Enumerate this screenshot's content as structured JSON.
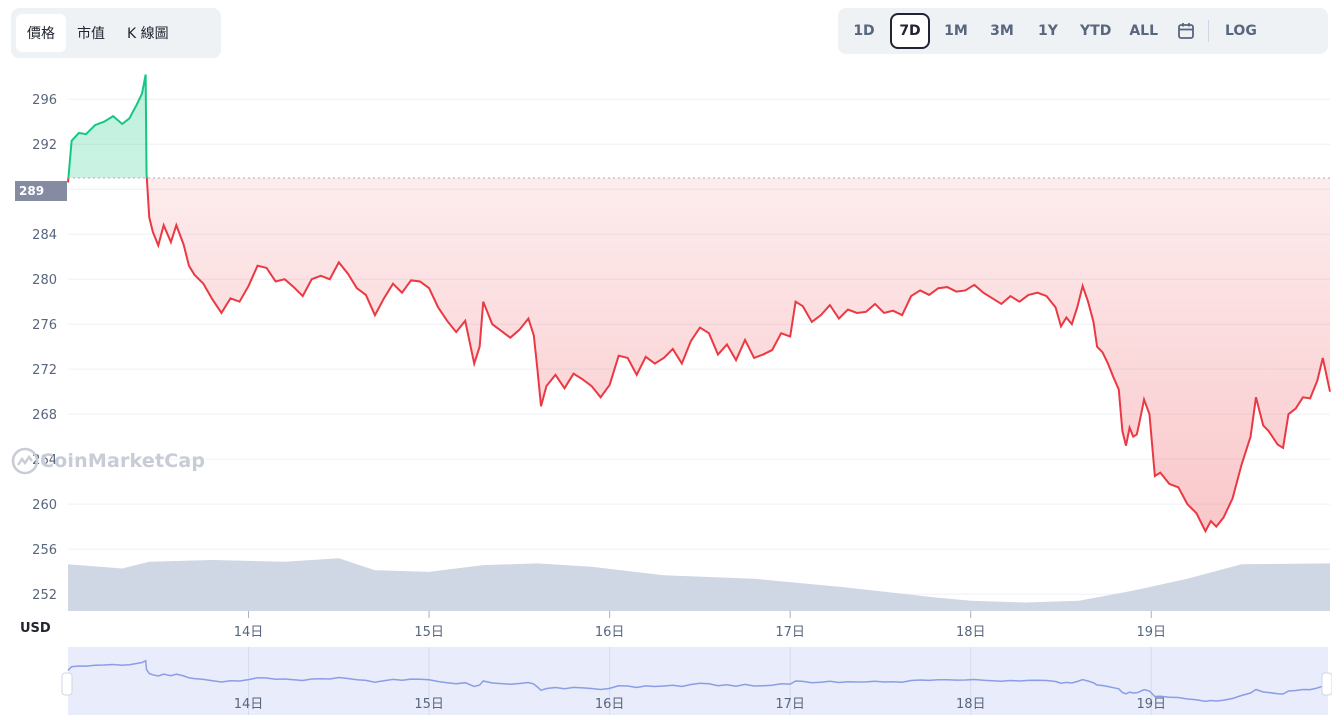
{
  "tabs_left": [
    {
      "label": "價格",
      "active": true
    },
    {
      "label": "市值",
      "active": false
    },
    {
      "label": "K 線圖",
      "active": false
    }
  ],
  "ranges": [
    "1D",
    "7D",
    "1M",
    "3M",
    "1Y",
    "YTD",
    "ALL"
  ],
  "active_range": "7D",
  "log_label": "LOG",
  "calendar_icon": "calendar-icon",
  "watermark": "CoinMarketCap",
  "current_price_label": "289",
  "currency_label": "USD",
  "colors": {
    "up": "#16c784",
    "down": "#ea3943",
    "volume": "#cfd6e4",
    "navigator_line": "#8a9ee6",
    "navigator_fill": "#e8ecfb"
  },
  "chart_data": {
    "type": "line",
    "title": "",
    "xlabel": "",
    "ylabel": "USD",
    "ylim": [
      250.5,
      298.6
    ],
    "y_ticks": [
      "252",
      "256",
      "260",
      "264",
      "268",
      "272",
      "276",
      "280",
      "284",
      "288",
      "292",
      "296"
    ],
    "x_tick_labels": [
      "14日",
      "15日",
      "16日",
      "17日",
      "18日",
      "19日"
    ],
    "x_tick_days": [
      14,
      15,
      16,
      17,
      18,
      19
    ],
    "reference_price": 289,
    "series": [
      {
        "name": "",
        "points": [
          [
            13.0,
            288.6
          ],
          [
            13.02,
            292.3
          ],
          [
            13.06,
            293.0
          ],
          [
            13.1,
            292.9
          ],
          [
            13.15,
            293.7
          ],
          [
            13.2,
            294.0
          ],
          [
            13.25,
            294.5
          ],
          [
            13.3,
            293.8
          ],
          [
            13.34,
            294.3
          ],
          [
            13.38,
            295.5
          ],
          [
            13.41,
            296.5
          ],
          [
            13.43,
            298.2
          ],
          [
            13.435,
            289.4
          ],
          [
            13.45,
            285.5
          ],
          [
            13.47,
            284.2
          ],
          [
            13.5,
            283.0
          ],
          [
            13.53,
            284.8
          ],
          [
            13.57,
            283.3
          ],
          [
            13.6,
            284.8
          ],
          [
            13.64,
            283.1
          ],
          [
            13.67,
            281.2
          ],
          [
            13.7,
            280.4
          ],
          [
            13.75,
            279.6
          ],
          [
            13.8,
            278.2
          ],
          [
            13.85,
            277.0
          ],
          [
            13.9,
            278.3
          ],
          [
            13.95,
            278.0
          ],
          [
            14.0,
            279.4
          ],
          [
            14.05,
            281.2
          ],
          [
            14.1,
            281.0
          ],
          [
            14.15,
            279.8
          ],
          [
            14.2,
            280.0
          ],
          [
            14.25,
            279.3
          ],
          [
            14.3,
            278.5
          ],
          [
            14.35,
            280.0
          ],
          [
            14.4,
            280.3
          ],
          [
            14.45,
            280.0
          ],
          [
            14.5,
            281.5
          ],
          [
            14.55,
            280.5
          ],
          [
            14.6,
            279.2
          ],
          [
            14.65,
            278.6
          ],
          [
            14.7,
            276.8
          ],
          [
            14.75,
            278.3
          ],
          [
            14.8,
            279.6
          ],
          [
            14.85,
            278.8
          ],
          [
            14.9,
            279.9
          ],
          [
            14.95,
            279.8
          ],
          [
            15.0,
            279.2
          ],
          [
            15.05,
            277.5
          ],
          [
            15.1,
            276.3
          ],
          [
            15.15,
            275.3
          ],
          [
            15.2,
            276.3
          ],
          [
            15.25,
            272.5
          ],
          [
            15.28,
            274.0
          ],
          [
            15.3,
            278.0
          ],
          [
            15.35,
            276.0
          ],
          [
            15.4,
            275.4
          ],
          [
            15.45,
            274.8
          ],
          [
            15.5,
            275.5
          ],
          [
            15.55,
            276.5
          ],
          [
            15.58,
            275.0
          ],
          [
            15.6,
            272.0
          ],
          [
            15.62,
            268.7
          ],
          [
            15.65,
            270.5
          ],
          [
            15.7,
            271.5
          ],
          [
            15.75,
            270.3
          ],
          [
            15.8,
            271.6
          ],
          [
            15.85,
            271.1
          ],
          [
            15.9,
            270.5
          ],
          [
            15.95,
            269.5
          ],
          [
            16.0,
            270.6
          ],
          [
            16.05,
            273.2
          ],
          [
            16.1,
            273.0
          ],
          [
            16.15,
            271.5
          ],
          [
            16.2,
            273.1
          ],
          [
            16.25,
            272.5
          ],
          [
            16.3,
            273.0
          ],
          [
            16.35,
            273.8
          ],
          [
            16.4,
            272.5
          ],
          [
            16.45,
            274.5
          ],
          [
            16.5,
            275.7
          ],
          [
            16.55,
            275.2
          ],
          [
            16.6,
            273.3
          ],
          [
            16.65,
            274.2
          ],
          [
            16.7,
            272.8
          ],
          [
            16.75,
            274.6
          ],
          [
            16.8,
            273.0
          ],
          [
            16.85,
            273.3
          ],
          [
            16.9,
            273.7
          ],
          [
            16.95,
            275.2
          ],
          [
            17.0,
            274.9
          ],
          [
            17.03,
            278.0
          ],
          [
            17.07,
            277.6
          ],
          [
            17.12,
            276.2
          ],
          [
            17.17,
            276.8
          ],
          [
            17.22,
            277.7
          ],
          [
            17.27,
            276.5
          ],
          [
            17.32,
            277.3
          ],
          [
            17.37,
            277.0
          ],
          [
            17.42,
            277.1
          ],
          [
            17.47,
            277.8
          ],
          [
            17.52,
            277.0
          ],
          [
            17.57,
            277.2
          ],
          [
            17.62,
            276.8
          ],
          [
            17.67,
            278.5
          ],
          [
            17.72,
            279.0
          ],
          [
            17.77,
            278.6
          ],
          [
            17.82,
            279.2
          ],
          [
            17.87,
            279.3
          ],
          [
            17.92,
            278.9
          ],
          [
            17.97,
            279.0
          ],
          [
            18.02,
            279.5
          ],
          [
            18.07,
            278.8
          ],
          [
            18.12,
            278.3
          ],
          [
            18.17,
            277.8
          ],
          [
            18.22,
            278.5
          ],
          [
            18.27,
            278.0
          ],
          [
            18.32,
            278.6
          ],
          [
            18.37,
            278.8
          ],
          [
            18.42,
            278.5
          ],
          [
            18.47,
            277.5
          ],
          [
            18.5,
            275.8
          ],
          [
            18.53,
            276.6
          ],
          [
            18.56,
            276.0
          ],
          [
            18.59,
            277.5
          ],
          [
            18.62,
            279.4
          ],
          [
            18.65,
            278.0
          ],
          [
            18.68,
            276.2
          ],
          [
            18.7,
            274.0
          ],
          [
            18.73,
            273.5
          ],
          [
            18.76,
            272.5
          ],
          [
            18.79,
            271.3
          ],
          [
            18.82,
            270.2
          ],
          [
            18.84,
            266.5
          ],
          [
            18.86,
            265.2
          ],
          [
            18.88,
            266.8
          ],
          [
            18.9,
            266.0
          ],
          [
            18.92,
            266.2
          ],
          [
            18.94,
            267.7
          ],
          [
            18.96,
            269.3
          ],
          [
            18.99,
            268.0
          ],
          [
            19.02,
            262.5
          ],
          [
            19.05,
            262.8
          ],
          [
            19.1,
            261.8
          ],
          [
            19.15,
            261.5
          ],
          [
            19.2,
            260.0
          ],
          [
            19.25,
            259.2
          ],
          [
            19.3,
            257.6
          ],
          [
            19.33,
            258.5
          ],
          [
            19.36,
            258.0
          ],
          [
            19.4,
            258.8
          ],
          [
            19.45,
            260.5
          ],
          [
            19.5,
            263.5
          ],
          [
            19.55,
            266.0
          ],
          [
            19.58,
            269.5
          ],
          [
            19.62,
            267.0
          ],
          [
            19.65,
            266.5
          ],
          [
            19.7,
            265.3
          ],
          [
            19.73,
            265.0
          ],
          [
            19.76,
            268.0
          ],
          [
            19.8,
            268.5
          ],
          [
            19.84,
            269.5
          ],
          [
            19.88,
            269.4
          ],
          [
            19.92,
            271.0
          ],
          [
            19.95,
            273.0
          ],
          [
            19.99,
            270.0
          ]
        ]
      }
    ],
    "volume": [
      [
        13.0,
        0.55
      ],
      [
        13.3,
        0.5
      ],
      [
        13.45,
        0.58
      ],
      [
        13.8,
        0.6
      ],
      [
        14.2,
        0.58
      ],
      [
        14.5,
        0.62
      ],
      [
        14.7,
        0.48
      ],
      [
        15.0,
        0.46
      ],
      [
        15.3,
        0.54
      ],
      [
        15.6,
        0.56
      ],
      [
        15.9,
        0.52
      ],
      [
        16.3,
        0.42
      ],
      [
        16.8,
        0.38
      ],
      [
        17.3,
        0.28
      ],
      [
        17.8,
        0.16
      ],
      [
        18.0,
        0.12
      ],
      [
        18.3,
        0.1
      ],
      [
        18.6,
        0.12
      ],
      [
        18.9,
        0.24
      ],
      [
        19.2,
        0.38
      ],
      [
        19.5,
        0.55
      ],
      [
        19.99,
        0.56
      ]
    ],
    "x_range": [
      13.0,
      19.99
    ]
  },
  "navigator": {
    "tick_labels": [
      "14日",
      "15日",
      "16日",
      "17日",
      "18日",
      "19日"
    ]
  }
}
